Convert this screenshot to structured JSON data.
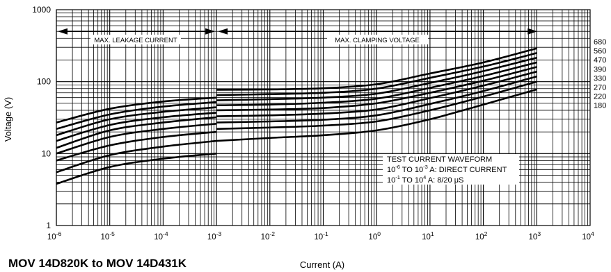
{
  "chart_data": {
    "type": "line",
    "title": "MOV 14D820K to MOV 14D431K",
    "xlabel": "Current (A)",
    "ylabel": "Voltage (V)",
    "x_scale": "log",
    "y_scale": "log",
    "xlim": [
      1e-06,
      10000
    ],
    "ylim": [
      1,
      1000
    ],
    "grid": true,
    "x_ticks": [
      {
        "value": 1e-06,
        "base": "10",
        "exp": "-6"
      },
      {
        "value": 1e-05,
        "base": "10",
        "exp": "-5"
      },
      {
        "value": 0.0001,
        "base": "10",
        "exp": "-4"
      },
      {
        "value": 0.001,
        "base": "10",
        "exp": "-3"
      },
      {
        "value": 0.01,
        "base": "10",
        "exp": "-2"
      },
      {
        "value": 0.1,
        "base": "10",
        "exp": "-1"
      },
      {
        "value": 1,
        "base": "10",
        "exp": "0"
      },
      {
        "value": 10,
        "base": "10",
        "exp": "1"
      },
      {
        "value": 100,
        "base": "10",
        "exp": "2"
      },
      {
        "value": 1000,
        "base": "10",
        "exp": "3"
      },
      {
        "value": 10000,
        "base": "10",
        "exp": "4"
      }
    ],
    "y_ticks": [
      {
        "value": 1,
        "label": "1"
      },
      {
        "value": 10,
        "label": "10"
      },
      {
        "value": 100,
        "label": "100"
      },
      {
        "value": 1000,
        "label": "1000"
      }
    ],
    "annotations": {
      "leakage": "MAX. LEAKAGE CURRENT",
      "clamping": "MAX. CLAMPING VOLTAGE",
      "leakage_range": [
        1e-06,
        0.001
      ],
      "clamping_range": [
        0.001,
        1000
      ],
      "arrow_y": 500
    },
    "waveform_note": {
      "line1": "TEST CURRENT WAVEFORM",
      "line2_base1": "10",
      "line2_exp1": "-6",
      "line2_mid": " TO 10",
      "line2_exp2": "-3",
      "line2_end": " A: DIRECT CURRENT",
      "line3_base1": "10",
      "line3_exp1": "-1",
      "line3_mid": " TO 10",
      "line3_exp2": "4",
      "line3_end": " A: 8/20 μS"
    },
    "series": [
      {
        "name": "680",
        "leakage": [
          [
            1e-06,
            27
          ],
          [
            1e-05,
            42
          ],
          [
            0.0001,
            53
          ],
          [
            0.001,
            60
          ]
        ],
        "clamp": [
          [
            0.001,
            77
          ],
          [
            0.01,
            78
          ],
          [
            0.1,
            81
          ],
          [
            1,
            92
          ],
          [
            10,
            130
          ],
          [
            100,
            185
          ],
          [
            1000,
            290
          ]
        ]
      },
      {
        "name": "560",
        "leakage": [
          [
            1e-06,
            22
          ],
          [
            1e-05,
            35
          ],
          [
            0.0001,
            45
          ],
          [
            0.001,
            52
          ]
        ],
        "clamp": [
          [
            0.001,
            65
          ],
          [
            0.01,
            67
          ],
          [
            0.1,
            70
          ],
          [
            1,
            80
          ],
          [
            10,
            113
          ],
          [
            100,
            162
          ],
          [
            1000,
            250
          ]
        ]
      },
      {
        "name": "470",
        "leakage": [
          [
            1e-06,
            18
          ],
          [
            1e-05,
            30
          ],
          [
            0.0001,
            38
          ],
          [
            0.001,
            44
          ]
        ],
        "clamp": [
          [
            0.001,
            55
          ],
          [
            0.01,
            57
          ],
          [
            0.1,
            60
          ],
          [
            1,
            68
          ],
          [
            10,
            96
          ],
          [
            100,
            140
          ],
          [
            1000,
            215
          ]
        ]
      },
      {
        "name": "390",
        "leakage": [
          [
            1e-06,
            15
          ],
          [
            1e-05,
            25
          ],
          [
            0.0001,
            32
          ],
          [
            0.001,
            37
          ]
        ],
        "clamp": [
          [
            0.001,
            47
          ],
          [
            0.01,
            48
          ],
          [
            0.1,
            51
          ],
          [
            1,
            58
          ],
          [
            10,
            82
          ],
          [
            100,
            120
          ],
          [
            1000,
            185
          ]
        ]
      },
      {
        "name": "330",
        "leakage": [
          [
            1e-06,
            12
          ],
          [
            1e-05,
            21
          ],
          [
            0.0001,
            27
          ],
          [
            0.001,
            32
          ]
        ],
        "clamp": [
          [
            0.001,
            40
          ],
          [
            0.01,
            41
          ],
          [
            0.1,
            43
          ],
          [
            1,
            50
          ],
          [
            10,
            70
          ],
          [
            100,
            103
          ],
          [
            1000,
            160
          ]
        ]
      },
      {
        "name": "270",
        "leakage": [
          [
            1e-06,
            10
          ],
          [
            1e-05,
            17
          ],
          [
            0.0001,
            22
          ],
          [
            0.001,
            26
          ]
        ],
        "clamp": [
          [
            0.001,
            33
          ],
          [
            0.01,
            34
          ],
          [
            0.1,
            36
          ],
          [
            1,
            41
          ],
          [
            10,
            59
          ],
          [
            100,
            88
          ],
          [
            1000,
            138
          ]
        ]
      },
      {
        "name": "220",
        "leakage": [
          [
            1e-06,
            8
          ],
          [
            1e-05,
            13
          ],
          [
            0.0001,
            17
          ],
          [
            0.001,
            20
          ]
        ],
        "clamp": [
          [
            0.001,
            27
          ],
          [
            0.01,
            28
          ],
          [
            0.1,
            29.5
          ],
          [
            1,
            34
          ],
          [
            10,
            49
          ],
          [
            100,
            74
          ],
          [
            1000,
            118
          ]
        ]
      },
      {
        "name": "180",
        "leakage": [
          [
            1e-06,
            5.5
          ],
          [
            1e-05,
            9.5
          ],
          [
            0.0001,
            12.5
          ],
          [
            0.001,
            15
          ]
        ],
        "clamp": [
          [
            0.001,
            22
          ],
          [
            0.01,
            23
          ],
          [
            0.1,
            24.5
          ],
          [
            1,
            28
          ],
          [
            10,
            40
          ],
          [
            100,
            62
          ],
          [
            1000,
            100
          ]
        ]
      },
      {
        "name": "",
        "leakage": [
          [
            1e-06,
            3.8
          ],
          [
            1e-05,
            6.5
          ],
          [
            0.0001,
            8.5
          ],
          [
            0.001,
            10
          ]
        ],
        "clamp": [
          [
            0.001,
            15
          ],
          [
            0.01,
            16.5
          ],
          [
            0.1,
            18
          ],
          [
            1,
            21
          ],
          [
            10,
            30
          ],
          [
            100,
            48
          ],
          [
            1000,
            78
          ]
        ]
      }
    ]
  }
}
